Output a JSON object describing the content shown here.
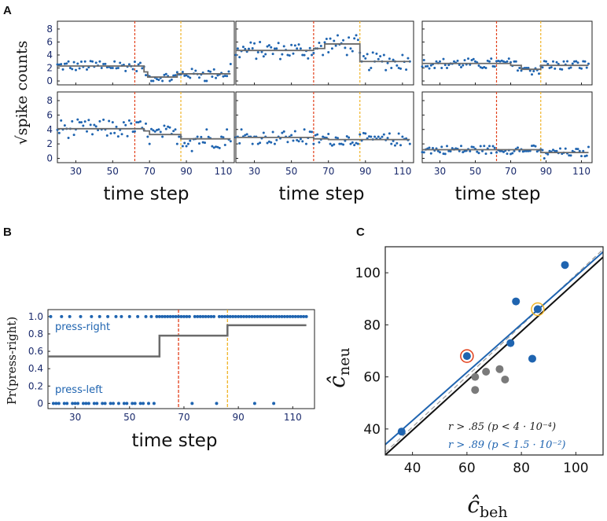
{
  "labels": {
    "A": "A",
    "B": "B",
    "C": "C"
  },
  "colors": {
    "dots": "#1f64b0",
    "step": "#6b6b6b",
    "red": "#e2401b",
    "orange": "#f0b428",
    "gray": "#7a7a7a",
    "fitblack": "#111111",
    "fitblue": "#1f64b0"
  },
  "chart_data": [
    {
      "panel": "A",
      "type": "scatter",
      "ylabel": "√spike counts",
      "xlabel": "time step",
      "x_ticks": [
        30,
        50,
        70,
        90,
        110
      ],
      "y_ticks": [
        0,
        2,
        4,
        6,
        8
      ],
      "xlim": [
        20,
        116
      ],
      "ylim": [
        -0.6,
        9.2
      ],
      "vlines": {
        "red": 62,
        "orange": 87
      },
      "subplots": [
        {
          "id": "r1c1",
          "steps": [
            [
              20,
              67,
              2.3
            ],
            [
              67,
              69,
              1.4
            ],
            [
              69,
              85,
              0.6
            ],
            [
              85,
              114,
              1.1
            ]
          ],
          "center": 2.3,
          "spread": 0.8
        },
        {
          "id": "r1c2",
          "steps": [
            [
              20,
              62,
              4.7
            ],
            [
              62,
              68,
              5.0
            ],
            [
              68,
              87,
              5.7
            ],
            [
              87,
              114,
              3.0
            ]
          ],
          "center": 4.6,
          "spread": 1.4
        },
        {
          "id": "r1c3",
          "steps": [
            [
              20,
              70,
              2.7
            ],
            [
              70,
              76,
              2.4
            ],
            [
              76,
              87,
              1.8
            ],
            [
              87,
              114,
              2.4
            ]
          ],
          "center": 2.5,
          "spread": 0.8
        },
        {
          "id": "r2c1",
          "steps": [
            [
              20,
              67,
              4.1
            ],
            [
              67,
              70,
              3.8
            ],
            [
              70,
              87,
              3.3
            ],
            [
              87,
              114,
              2.7
            ]
          ],
          "center": 3.6,
          "spread": 1.3
        },
        {
          "id": "r2c2",
          "steps": [
            [
              20,
              62,
              2.9
            ],
            [
              62,
              70,
              2.7
            ],
            [
              70,
              114,
              2.6
            ]
          ],
          "center": 2.8,
          "spread": 0.9
        },
        {
          "id": "r2c3",
          "steps": [
            [
              20,
              87,
              1.2
            ],
            [
              87,
              114,
              0.8
            ]
          ],
          "center": 1.1,
          "spread": 0.6
        }
      ]
    },
    {
      "panel": "B",
      "type": "scatter",
      "ylabel": "Pr(press-right)",
      "xlabel": "time step",
      "x_ticks": [
        30,
        50,
        70,
        90,
        110
      ],
      "y_ticks": [
        "0",
        "0.2",
        "0.4",
        "0.6",
        "0.8",
        "1.0"
      ],
      "xlim": [
        20,
        118
      ],
      "ylim": [
        -0.06,
        1.08
      ],
      "annotations": {
        "top": "press-right",
        "bottom": "press-left"
      },
      "vlines": {
        "red": 68,
        "orange": 86
      },
      "step": [
        [
          20,
          61,
          0.54
        ],
        [
          61,
          86,
          0.78
        ],
        [
          86,
          115,
          0.9
        ]
      ],
      "press_right_x": [
        21,
        25,
        28,
        32,
        36,
        39,
        42,
        45,
        47,
        50,
        53,
        56,
        58,
        60,
        61,
        62,
        63,
        64,
        65,
        66,
        67,
        68,
        69,
        70,
        71,
        72,
        74,
        75,
        76,
        77,
        78,
        79,
        80,
        81,
        83,
        84,
        85,
        86,
        87,
        88,
        89,
        90,
        91,
        92,
        93,
        94,
        95,
        96,
        97,
        98,
        99,
        100,
        101,
        102,
        103,
        104,
        105,
        106,
        107,
        108,
        109,
        110,
        111,
        112,
        113,
        114,
        115
      ],
      "press_left_x": [
        22,
        23,
        24,
        26,
        27,
        29,
        30,
        31,
        33,
        34,
        35,
        37,
        38,
        40,
        41,
        43,
        44,
        46,
        48,
        49,
        51,
        52,
        54,
        55,
        57,
        59,
        73,
        82,
        96,
        103
      ]
    },
    {
      "panel": "C",
      "type": "scatter",
      "xlabel": "ĉ beh",
      "ylabel": "ĉ neu",
      "xlim": [
        30,
        110
      ],
      "ylim": [
        30,
        110
      ],
      "x_ticks": [
        40,
        60,
        80,
        100
      ],
      "y_ticks": [
        40,
        60,
        80,
        100
      ],
      "blue_points": [
        [
          36,
          39
        ],
        [
          60,
          68
        ],
        [
          76,
          73
        ],
        [
          78,
          89
        ],
        [
          84,
          67
        ],
        [
          86,
          86
        ],
        [
          96,
          103
        ]
      ],
      "gray_points": [
        [
          63,
          55
        ],
        [
          63,
          60
        ],
        [
          67,
          62
        ],
        [
          72,
          63
        ],
        [
          74,
          59
        ],
        [
          86,
          86
        ]
      ],
      "highlight_red": [
        60,
        68
      ],
      "highlight_orange": [
        86,
        86
      ],
      "fit_black": [
        [
          30,
          30
        ],
        [
          110,
          106
        ]
      ],
      "fit_blue": [
        [
          30,
          34
        ],
        [
          110,
          108
        ]
      ],
      "identity": [
        [
          30,
          31
        ],
        [
          110,
          109
        ]
      ],
      "stats": {
        "black": "r > .85 (p < 4 · 10⁻⁴)",
        "blue": "r > .89 (p < 1.5 · 10⁻²)"
      }
    }
  ]
}
